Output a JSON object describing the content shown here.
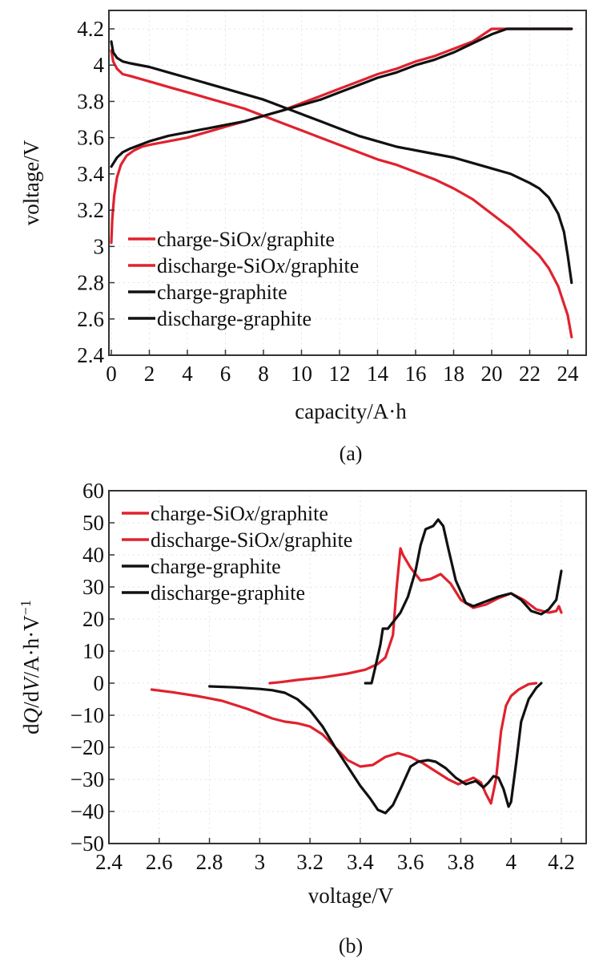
{
  "chart_data": [
    {
      "id": "a",
      "type": "line",
      "caption": "(a)",
      "xlabel": "capacity/A·h",
      "ylabel": "voltage/V",
      "xlim": [
        0,
        25
      ],
      "ylim": [
        2.4,
        4.3
      ],
      "xticks": [
        0,
        2,
        4,
        6,
        8,
        10,
        12,
        14,
        16,
        18,
        20,
        22,
        24
      ],
      "yticks": [
        2.4,
        2.6,
        2.8,
        3,
        3.2,
        3.4,
        3.6,
        3.8,
        4,
        4.2
      ],
      "ytick_labels": [
        "2.4",
        "2.6",
        "2.8",
        "3",
        "3.2",
        "3.4",
        "3.6",
        "3.8",
        "4",
        "4.2"
      ],
      "grid": true,
      "legend_position": "bottom-left",
      "series": [
        {
          "name": "charge-SiOx/graphite",
          "color": "#e0222e",
          "x": [
            0,
            0.05,
            0.15,
            0.3,
            0.5,
            0.8,
            1.2,
            1.6,
            2,
            3,
            4,
            5,
            6,
            7,
            8,
            9,
            10,
            11,
            12,
            13,
            14,
            15,
            16,
            17,
            18,
            19,
            20,
            21,
            22,
            23,
            24.2
          ],
          "y": [
            3.02,
            3.15,
            3.28,
            3.38,
            3.45,
            3.5,
            3.53,
            3.55,
            3.56,
            3.58,
            3.6,
            3.63,
            3.66,
            3.69,
            3.72,
            3.75,
            3.79,
            3.83,
            3.87,
            3.91,
            3.95,
            3.98,
            4.02,
            4.05,
            4.09,
            4.13,
            4.2,
            4.2,
            4.2,
            4.2,
            4.2
          ]
        },
        {
          "name": "discharge-SiOx/graphite",
          "color": "#e0222e",
          "x": [
            0,
            0.1,
            0.3,
            0.6,
            1,
            2,
            3,
            4,
            5,
            6,
            7,
            8,
            9,
            10,
            11,
            12,
            13,
            14,
            15,
            16,
            17,
            18,
            19,
            20,
            21,
            22,
            22.5,
            23,
            23.5,
            24,
            24.2
          ],
          "y": [
            4.08,
            4.02,
            3.98,
            3.95,
            3.94,
            3.91,
            3.88,
            3.85,
            3.82,
            3.79,
            3.76,
            3.72,
            3.68,
            3.64,
            3.6,
            3.56,
            3.52,
            3.48,
            3.45,
            3.41,
            3.37,
            3.32,
            3.26,
            3.18,
            3.1,
            3.0,
            2.95,
            2.88,
            2.78,
            2.62,
            2.5
          ]
        },
        {
          "name": "charge-graphite",
          "color": "#111111",
          "x": [
            0,
            0.3,
            0.6,
            1,
            1.5,
            2,
            3,
            4,
            5,
            6,
            7,
            8,
            9,
            10,
            11,
            12,
            13,
            14,
            15,
            16,
            17,
            18,
            19,
            20,
            20.8,
            22,
            23,
            24.2
          ],
          "y": [
            3.44,
            3.49,
            3.52,
            3.54,
            3.56,
            3.58,
            3.61,
            3.63,
            3.65,
            3.67,
            3.69,
            3.72,
            3.75,
            3.78,
            3.81,
            3.85,
            3.89,
            3.93,
            3.96,
            4.0,
            4.03,
            4.07,
            4.12,
            4.17,
            4.2,
            4.2,
            4.2,
            4.2
          ]
        },
        {
          "name": "discharge-graphite",
          "color": "#111111",
          "x": [
            0,
            0.1,
            0.3,
            0.6,
            1,
            2,
            3,
            4,
            5,
            6,
            7,
            8,
            9,
            10,
            11,
            12,
            13,
            14,
            15,
            16,
            17,
            18,
            19,
            20,
            21,
            22,
            22.5,
            23,
            23.5,
            23.8,
            24,
            24.2
          ],
          "y": [
            4.13,
            4.07,
            4.04,
            4.02,
            4.01,
            3.99,
            3.96,
            3.93,
            3.9,
            3.87,
            3.84,
            3.81,
            3.77,
            3.73,
            3.69,
            3.65,
            3.61,
            3.58,
            3.55,
            3.53,
            3.51,
            3.49,
            3.46,
            3.43,
            3.4,
            3.35,
            3.32,
            3.27,
            3.18,
            3.08,
            2.95,
            2.8
          ]
        }
      ]
    },
    {
      "id": "b",
      "type": "line",
      "caption": "(b)",
      "xlabel": "voltage/V",
      "ylabel_parts": [
        "d",
        "Q",
        "/d",
        "V",
        "/A·h·V",
        "−1"
      ],
      "xlim": [
        2.4,
        4.3
      ],
      "ylim": [
        -50,
        60
      ],
      "xticks": [
        2.4,
        2.6,
        2.8,
        3,
        3.2,
        3.4,
        3.6,
        3.8,
        4,
        4.2
      ],
      "xtick_labels": [
        "2.4",
        "2.6",
        "2.8",
        "3",
        "3.2",
        "3.4",
        "3.6",
        "3.8",
        "4",
        "4.2"
      ],
      "yticks": [
        -50,
        -40,
        -30,
        -20,
        -10,
        0,
        10,
        20,
        30,
        40,
        50,
        60
      ],
      "ytick_labels": [
        "−50",
        "−40",
        "−30",
        "−20",
        "−10",
        "0",
        "10",
        "20",
        "30",
        "40",
        "50",
        "60"
      ],
      "grid": true,
      "legend_position": "top-left",
      "series": [
        {
          "name": "charge-SiOx/graphite",
          "color": "#e0222e",
          "x": [
            3.04,
            3.08,
            3.15,
            3.25,
            3.35,
            3.42,
            3.47,
            3.5,
            3.53,
            3.545,
            3.56,
            3.57,
            3.6,
            3.64,
            3.68,
            3.72,
            3.76,
            3.8,
            3.85,
            3.9,
            3.95,
            4.0,
            4.05,
            4.1,
            4.15,
            4.18,
            4.19,
            4.2
          ],
          "y": [
            0,
            0.3,
            1,
            1.8,
            3,
            4.2,
            6,
            8,
            15,
            30,
            42,
            40,
            36,
            32,
            32.5,
            34,
            31,
            26,
            23.5,
            24.5,
            26.5,
            28,
            26,
            23,
            22,
            22.5,
            24,
            22
          ]
        },
        {
          "name": "discharge-SiOx/graphite",
          "color": "#e0222e",
          "x": [
            2.57,
            2.65,
            2.75,
            2.85,
            2.95,
            3.05,
            3.1,
            3.15,
            3.2,
            3.25,
            3.3,
            3.35,
            3.4,
            3.45,
            3.5,
            3.55,
            3.6,
            3.65,
            3.7,
            3.75,
            3.79,
            3.82,
            3.85,
            3.88,
            3.9,
            3.92,
            3.94,
            3.96,
            3.98,
            4.0,
            4.03,
            4.07,
            4.1
          ],
          "y": [
            -2,
            -2.8,
            -4,
            -5.5,
            -8,
            -11,
            -12,
            -12.5,
            -13.5,
            -16,
            -20,
            -24,
            -26,
            -25.5,
            -23,
            -21.8,
            -23,
            -25,
            -27.5,
            -30,
            -31.5,
            -30.5,
            -29.5,
            -31,
            -34.5,
            -37.5,
            -30,
            -15,
            -7,
            -4,
            -2,
            -0.3,
            0
          ]
        },
        {
          "name": "charge-graphite",
          "color": "#111111",
          "x": [
            3.42,
            3.445,
            3.46,
            3.48,
            3.49,
            3.51,
            3.53,
            3.56,
            3.59,
            3.62,
            3.64,
            3.66,
            3.69,
            3.71,
            3.73,
            3.75,
            3.78,
            3.82,
            3.85,
            3.9,
            3.95,
            4.0,
            4.04,
            4.08,
            4.12,
            4.15,
            4.18,
            4.2
          ],
          "y": [
            0,
            0,
            5,
            12,
            17,
            17,
            19,
            22,
            27,
            35,
            43,
            48,
            49,
            51,
            49,
            42,
            32,
            25,
            24,
            25.5,
            27,
            28,
            26,
            22.5,
            21.5,
            23,
            26,
            35
          ]
        },
        {
          "name": "discharge-graphite",
          "color": "#111111",
          "x": [
            2.8,
            2.9,
            3.0,
            3.05,
            3.1,
            3.15,
            3.2,
            3.25,
            3.3,
            3.35,
            3.4,
            3.44,
            3.47,
            3.5,
            3.53,
            3.56,
            3.6,
            3.63,
            3.67,
            3.7,
            3.74,
            3.78,
            3.82,
            3.86,
            3.89,
            3.91,
            3.93,
            3.95,
            3.97,
            3.99,
            4.0,
            4.02,
            4.04,
            4.07,
            4.1,
            4.12
          ],
          "y": [
            -1,
            -1.3,
            -1.8,
            -2.2,
            -3,
            -5,
            -8.5,
            -13.5,
            -20,
            -26,
            -32,
            -36,
            -39.5,
            -40.5,
            -38,
            -33,
            -26,
            -24.5,
            -24,
            -24.5,
            -26.5,
            -29.5,
            -31.5,
            -30.5,
            -32.5,
            -31,
            -29,
            -29.5,
            -33,
            -38.5,
            -37,
            -25,
            -12,
            -5,
            -1.5,
            0
          ]
        }
      ]
    }
  ]
}
